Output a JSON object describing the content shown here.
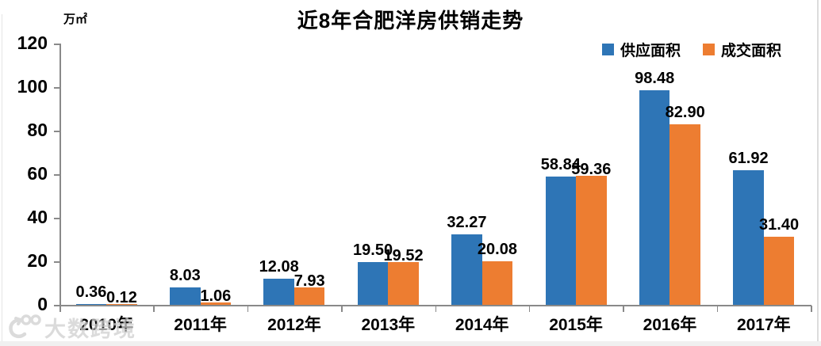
{
  "chart_data": {
    "type": "bar",
    "title": "近8年合肥洋房供销走势",
    "unit_label": "万㎡",
    "categories": [
      "2010年",
      "2011年",
      "2012年",
      "2013年",
      "2014年",
      "2015年",
      "2016年",
      "2017年"
    ],
    "series": [
      {
        "name": "供应面积",
        "color": "#2E75B6",
        "values": [
          0.36,
          8.03,
          12.08,
          19.5,
          32.27,
          58.84,
          98.48,
          61.92
        ],
        "labels": [
          "0.36",
          "8.03",
          "12.08",
          "19.50",
          "32.27",
          "58.84",
          "98.48",
          "61.92"
        ]
      },
      {
        "name": "成交面积",
        "color": "#ED7D31",
        "values": [
          0.12,
          1.06,
          7.93,
          19.52,
          20.08,
          59.36,
          82.9,
          31.4
        ],
        "labels": [
          "0.12",
          "1.06",
          "7.93",
          "19.52",
          "20.08",
          "59.36",
          "82.90",
          "31.40"
        ]
      }
    ],
    "ylim": [
      0,
      120
    ],
    "yticks": [
      0,
      20,
      40,
      60,
      80,
      100,
      120
    ],
    "grid": false,
    "legend_position": "top-right",
    "axis_color": "#898989",
    "label_color": "#000000"
  },
  "watermark": {
    "logo_text": "100",
    "text": "大数跨境"
  }
}
